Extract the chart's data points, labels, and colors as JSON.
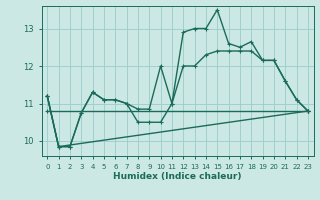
{
  "title": "",
  "xlabel": "Humidex (Indice chaleur)",
  "ylabel": "",
  "bg_color": "#cce8e4",
  "grid_color": "#99cccc",
  "line_color": "#1a6b5a",
  "xlim": [
    -0.5,
    23.5
  ],
  "ylim": [
    9.6,
    13.6
  ],
  "yticks": [
    10,
    11,
    12,
    13
  ],
  "xticks": [
    0,
    1,
    2,
    3,
    4,
    5,
    6,
    7,
    8,
    9,
    10,
    11,
    12,
    13,
    14,
    15,
    16,
    17,
    18,
    19,
    20,
    21,
    22,
    23
  ],
  "series": [
    {
      "x": [
        0,
        1,
        2,
        3,
        4,
        5,
        6,
        7,
        8,
        9,
        10,
        11,
        12,
        13,
        14,
        15,
        16,
        17,
        18,
        19,
        20,
        21,
        22,
        23
      ],
      "y": [
        11.2,
        9.85,
        9.85,
        10.75,
        11.3,
        11.1,
        11.1,
        11.0,
        10.85,
        10.85,
        12.0,
        11.0,
        12.9,
        13.0,
        13.0,
        13.5,
        12.6,
        12.5,
        12.65,
        12.15,
        12.15,
        11.6,
        11.1,
        10.8
      ]
    },
    {
      "x": [
        0,
        1,
        2,
        3,
        4,
        5,
        6,
        7,
        8,
        9,
        10,
        11,
        12,
        13,
        14,
        15,
        16,
        17,
        18,
        19,
        20,
        21,
        22,
        23
      ],
      "y": [
        11.2,
        9.85,
        9.85,
        10.75,
        11.3,
        11.1,
        11.1,
        11.0,
        10.5,
        10.5,
        10.5,
        11.0,
        12.0,
        12.0,
        12.3,
        12.4,
        12.4,
        12.4,
        12.4,
        12.15,
        12.15,
        11.6,
        11.1,
        10.8
      ]
    },
    {
      "x": [
        0,
        1,
        23
      ],
      "y": [
        11.2,
        9.85,
        10.8
      ]
    },
    {
      "x": [
        0,
        23
      ],
      "y": [
        10.8,
        10.8
      ]
    }
  ],
  "marker": "+",
  "markersize": 3.5,
  "linewidth": 1.0
}
